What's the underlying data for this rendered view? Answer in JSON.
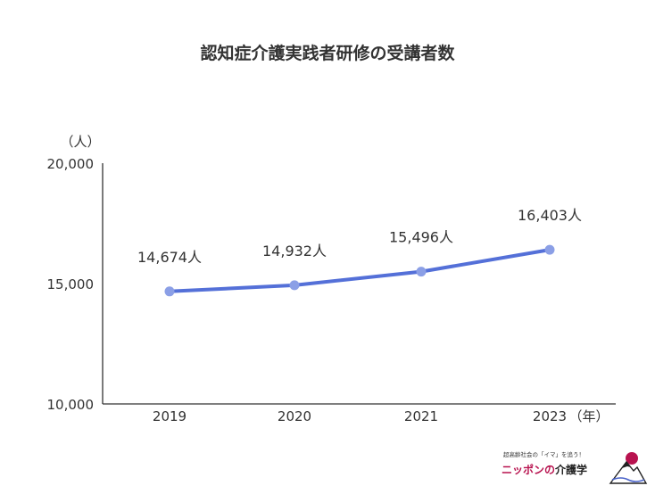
{
  "chart_data": {
    "type": "line",
    "title": "認知症介護実践者研修の受講者数",
    "y_unit": "（人）",
    "x_unit": "（年）",
    "categories": [
      "2019",
      "2020",
      "2021",
      "2023"
    ],
    "series": [
      {
        "values": [
          14674,
          14932,
          15496,
          16403
        ],
        "color": "#5470d8"
      }
    ],
    "data_labels": [
      "14,674人",
      "14,932人",
      "15,496人",
      "16,403人"
    ],
    "y_ticks": [
      {
        "value": 10000,
        "label": "10,000"
      },
      {
        "value": 15000,
        "label": "15,000"
      },
      {
        "value": 20000,
        "label": "20,000"
      }
    ],
    "ylim": [
      10000,
      20000
    ],
    "grid": false,
    "marker_color": "#8b9fe6"
  },
  "logo": {
    "tagline": "超高齢社会の「イマ」を追う！",
    "name_part1": "ニッポンの",
    "name_part2": "介護学"
  }
}
